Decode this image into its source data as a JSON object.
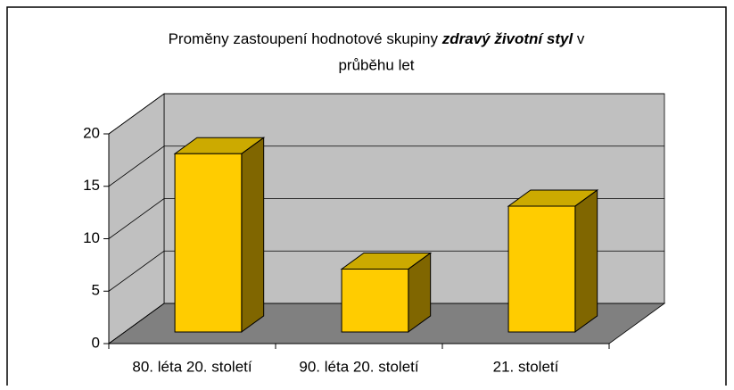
{
  "chart_data": {
    "type": "bar3d",
    "title_parts": [
      "Proměny zastoupení hodnotové skupiny",
      "zdravý životní styl",
      "v",
      "průběhu let"
    ],
    "categories": [
      "80. léta 20. století",
      "90. léta 20. století",
      "21. století"
    ],
    "values": [
      17,
      6,
      12
    ],
    "color": "#ffcc00",
    "ylim": [
      0,
      20
    ],
    "yticks": [
      0,
      5,
      10,
      15,
      20
    ],
    "grid": true
  }
}
